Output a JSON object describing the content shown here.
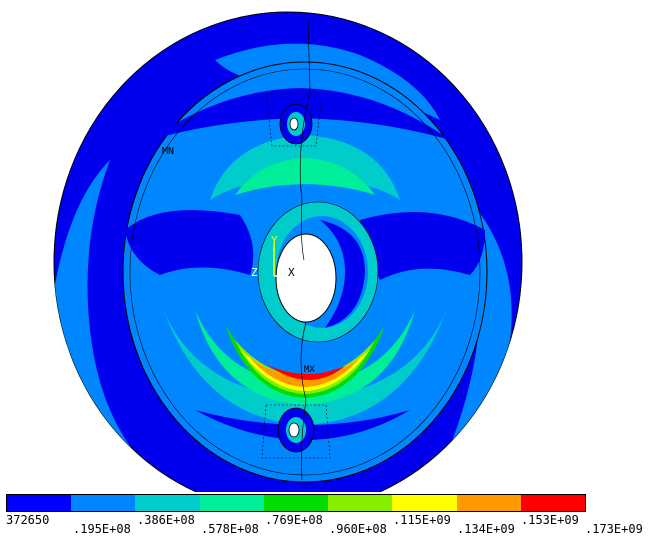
{
  "triad": {
    "y": "Y",
    "z": "Z",
    "x": "X"
  },
  "node_markers": {
    "top": "MN",
    "bottom": "MX"
  },
  "legend": {
    "colors": [
      "#0000ff",
      "#0087ff",
      "#00cccc",
      "#00ee99",
      "#00dd00",
      "#88ee00",
      "#ffff00",
      "#ff9900",
      "#ff0000"
    ],
    "labels": [
      "372650",
      ".195E+08",
      ".386E+08",
      ".578E+08",
      ".769E+08",
      ".960E+08",
      ".115E+09",
      ".134E+09",
      ".153E+09",
      ".173E+09"
    ]
  }
}
